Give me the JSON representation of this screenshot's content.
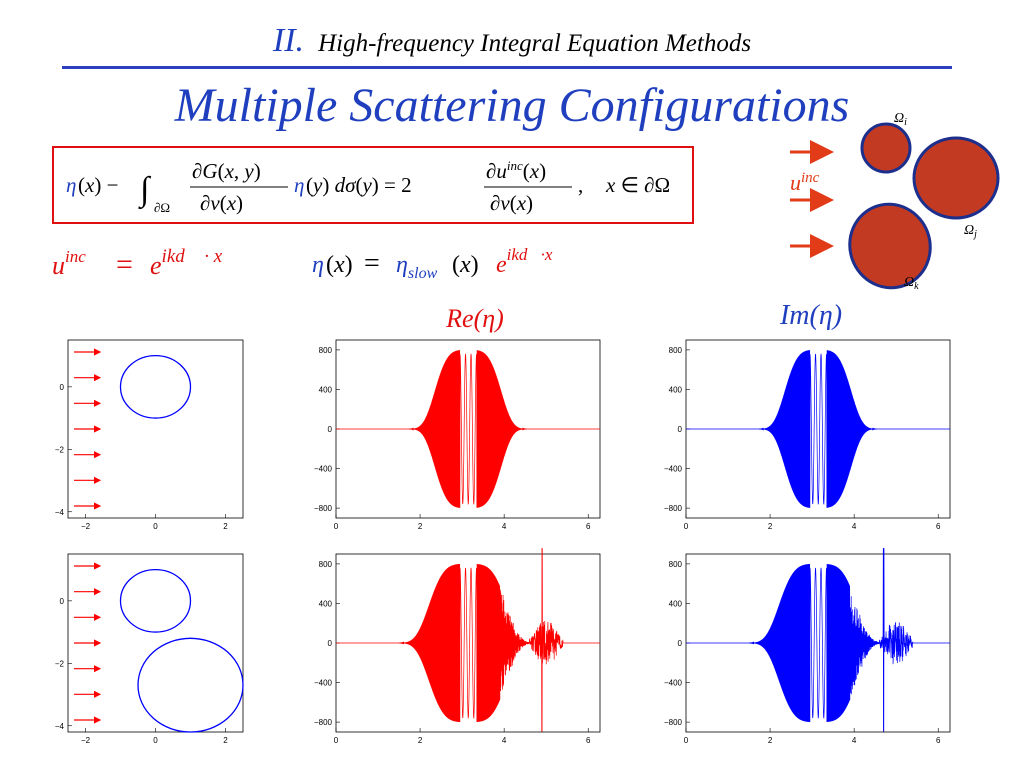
{
  "header": {
    "section_number": "II.",
    "section_title": "High-frequency Integral Equation Methods"
  },
  "slide_title": "Multiple Scattering Configurations",
  "equations": {
    "main": "η(x) − ∫∂Ω ∂G(x,y)/∂ν(x) η(y) dσ(y) = 2 ∂u^inc(x)/∂ν(x),   x ∈ ∂Ω",
    "incident": "u^inc = e^{ik d⃗ · x}",
    "ansatz": "η(x) = η_slow(x) e^{ik d⃗·x}"
  },
  "diagram": {
    "wave_label": "u^inc",
    "obstacle_labels": [
      "Ωi",
      "Ωj",
      "Ωk"
    ],
    "obstacle_fill": "#c23a22",
    "obstacle_stroke": "#1d2f8c",
    "arrow_color": "#e23b17"
  },
  "plot_titles": {
    "re": "Re(η)",
    "im": "Im(η)"
  },
  "colors": {
    "accent": "#1f3fbf",
    "red": "#ff0000",
    "blue": "#0000ff"
  },
  "chart_data": [
    {
      "type": "diagram",
      "name": "geometry-1",
      "xlim": [
        -2.5,
        2.5
      ],
      "ylim": [
        -4.2,
        1.5
      ],
      "xticks": [
        "−2",
        "0",
        "2"
      ],
      "yticks": [
        "0",
        "−2",
        "−4"
      ],
      "circles": [
        {
          "cx": 0,
          "cy": 0,
          "r": 1
        }
      ],
      "incident_arrows": 7
    },
    {
      "type": "line",
      "name": "re-eta-1",
      "color": "red",
      "xlim": [
        0,
        6.28
      ],
      "ylim": [
        -900,
        900
      ],
      "xticks": [
        "0",
        "2",
        "4",
        "6"
      ],
      "yticks": [
        "800",
        "400",
        "0",
        "−400",
        "−800"
      ],
      "signal": {
        "amplitude": 800,
        "center": 3.14,
        "width": 0.85,
        "gap": [
          2.95,
          3.35
        ]
      }
    },
    {
      "type": "line",
      "name": "im-eta-1",
      "color": "blue",
      "xlim": [
        0,
        6.28
      ],
      "ylim": [
        -900,
        900
      ],
      "xticks": [
        "0",
        "2",
        "4",
        "6"
      ],
      "yticks": [
        "800",
        "400",
        "0",
        "−400",
        "−800"
      ],
      "signal": {
        "amplitude": 800,
        "center": 3.14,
        "width": 0.85,
        "gap": [
          2.95,
          3.35
        ]
      }
    },
    {
      "type": "diagram",
      "name": "geometry-2",
      "xlim": [
        -2.5,
        2.5
      ],
      "ylim": [
        -4.2,
        1.5
      ],
      "xticks": [
        "−2",
        "0",
        "2"
      ],
      "yticks": [
        "0",
        "−2",
        "−4"
      ],
      "circles": [
        {
          "cx": 0,
          "cy": 0,
          "r": 1
        },
        {
          "cx": 1,
          "cy": -2.7,
          "r": 1.5
        }
      ],
      "incident_arrows": 7
    },
    {
      "type": "line",
      "name": "re-eta-2",
      "color": "red",
      "xlim": [
        0,
        6.28
      ],
      "ylim": [
        -900,
        900
      ],
      "xticks": [
        "0",
        "2",
        "4",
        "6"
      ],
      "yticks": [
        "800",
        "400",
        "0",
        "−400",
        "−800"
      ],
      "signal": {
        "amplitude": 800,
        "center": 3.14,
        "width": 1.0,
        "gap": [
          2.95,
          3.35
        ],
        "noisy_after": 3.9,
        "spike": 4.9
      }
    },
    {
      "type": "line",
      "name": "im-eta-2",
      "color": "blue",
      "xlim": [
        0,
        6.28
      ],
      "ylim": [
        -900,
        900
      ],
      "xticks": [
        "0",
        "2",
        "4",
        "6"
      ],
      "yticks": [
        "800",
        "400",
        "0",
        "−400",
        "−800"
      ],
      "signal": {
        "amplitude": 800,
        "center": 3.14,
        "width": 1.0,
        "gap": [
          2.95,
          3.35
        ],
        "noisy_after": 3.9,
        "spike": 4.7
      }
    }
  ]
}
